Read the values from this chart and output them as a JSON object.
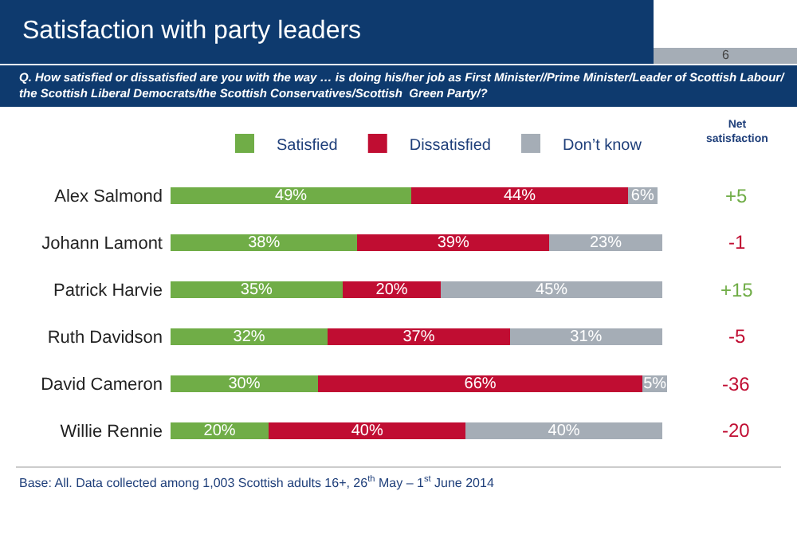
{
  "chart_data": {
    "type": "bar",
    "orientation": "horizontal",
    "stacked": true,
    "title": "Satisfaction with party leaders",
    "subtitle": "Q. How satisfied or dissatisfied are you with the way … is doing his/her job as First Minister//Prime Minister/Leader of Scottish Labour/the Scottish Liberal Democrats/the Scottish Conservatives/Scottish  Green Party/?",
    "categories": [
      "Alex Salmond",
      "Johann Lamont",
      "Patrick Harvie",
      "Ruth Davidson",
      "David Cameron",
      "Willie Rennie"
    ],
    "series": [
      {
        "name": "Satisfied",
        "color": "#70ad47",
        "values": [
          49,
          38,
          35,
          32,
          30,
          20
        ],
        "value_labels": [
          "49%",
          "38%",
          "35%",
          "32%",
          "30%",
          "20%"
        ]
      },
      {
        "name": "Dissatisfied",
        "color": "#c00d32",
        "values": [
          44,
          39,
          20,
          37,
          66,
          40
        ],
        "value_labels": [
          "44%",
          "39%",
          "20%",
          "37%",
          "66%",
          "40%"
        ]
      },
      {
        "name": "Don’t know",
        "color": "#a5adb6",
        "values": [
          6,
          23,
          45,
          31,
          5,
          40
        ],
        "value_labels": [
          "6%",
          "23%",
          "45%",
          "31%",
          "5%",
          "40%"
        ]
      }
    ],
    "legend": "top",
    "annotations": [
      "6",
      "Net satisfaction",
      "+5",
      "-1",
      "+15",
      "-5",
      "-36",
      "-20",
      "Base: All. Data collected among 1,003 Scottish adults 16+, 26$^{th}$ May – 1$^{st}$ June 2014"
    ]
  }
}
